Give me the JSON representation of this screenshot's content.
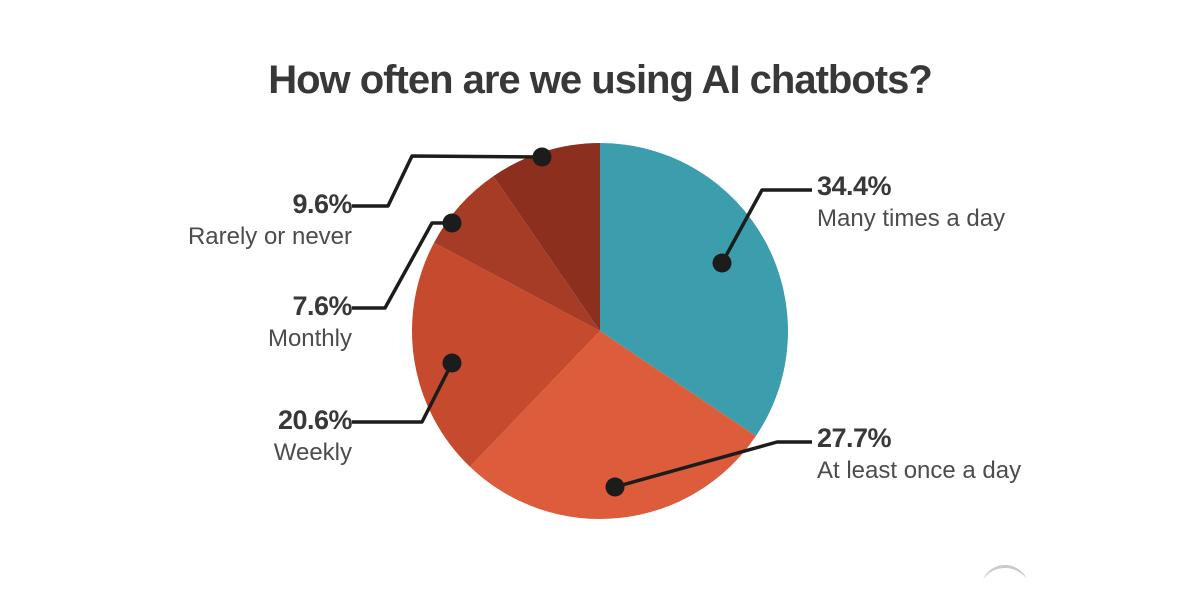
{
  "chart_data": {
    "type": "pie",
    "title": "How often are we using AI chatbots?",
    "start_angle_deg": 0,
    "direction": "clockwise",
    "legend_position": "callout-labels",
    "segments": [
      {
        "label": "Many times a day",
        "display": "34.4%",
        "value": 34.4,
        "color": "#3C9EAC"
      },
      {
        "label": "At least once a day",
        "display": "27.7%",
        "value": 27.7,
        "color": "#DC5C3C"
      },
      {
        "label": "Weekly",
        "display": "20.6%",
        "value": 20.6,
        "color": "#C64A2D"
      },
      {
        "label": "Monthly",
        "display": "7.6%",
        "value": 7.6,
        "color": "#A63B26"
      },
      {
        "label": "Rarely or never",
        "display": "9.6%",
        "value": 9.6,
        "color": "#8C2F1F"
      }
    ]
  },
  "style": {
    "title_color": "#383838",
    "percent_color": "#383838",
    "label_color": "#4C4C4C",
    "connector_color": "#1C1C1C",
    "watermark_color": "#C9C9C9"
  }
}
